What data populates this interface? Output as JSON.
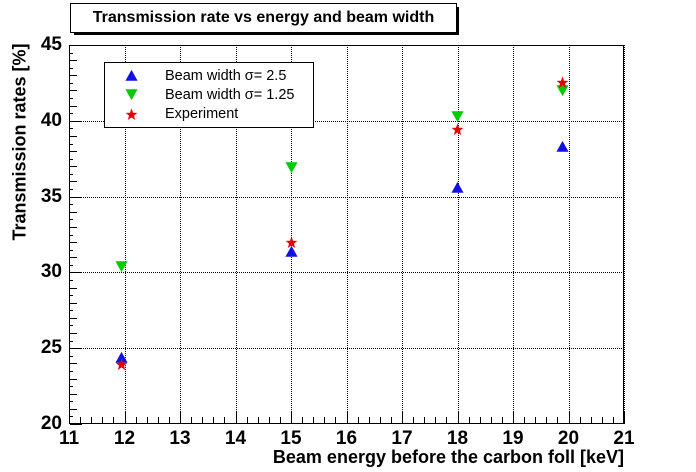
{
  "title": "Transmission rate vs energy and beam width",
  "chart_data": {
    "type": "scatter",
    "x": [
      11.95,
      15.0,
      18.0,
      19.9
    ],
    "series": [
      {
        "name": "Beam width σ= 2.5",
        "marker": "triangle-up",
        "color": "#1010e0",
        "values": [
          24.4,
          31.4,
          35.6,
          38.3
        ]
      },
      {
        "name": "Beam width σ= 1.25",
        "marker": "triangle-down",
        "color": "#00cc00",
        "values": [
          30.4,
          36.9,
          40.3,
          42.0
        ]
      },
      {
        "name": "Experiment",
        "marker": "star",
        "color": "#e80000",
        "values": [
          23.9,
          32.0,
          39.4,
          42.5
        ]
      }
    ],
    "xlabel": "Beam energy before the carbon foll [keV]",
    "ylabel": "Transmission rates [%]",
    "xlim": [
      11,
      21
    ],
    "ylim": [
      20,
      45
    ],
    "xticks": [
      11,
      12,
      13,
      14,
      15,
      16,
      17,
      18,
      19,
      20,
      21
    ],
    "yticks": [
      20,
      25,
      30,
      35,
      40,
      45
    ],
    "x_minor_step": 0.2,
    "y_minor_step": 0.5,
    "grid": "dotted",
    "legend_position": "top-left",
    "frame_color": "#000000",
    "background_color": "#ffffff"
  }
}
